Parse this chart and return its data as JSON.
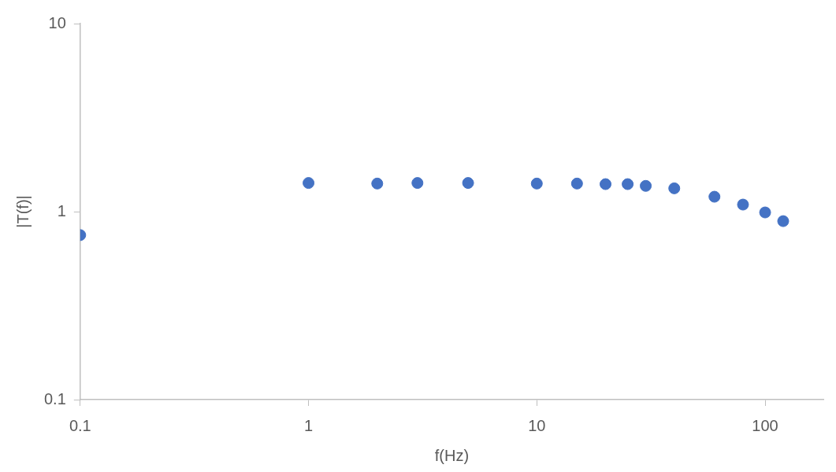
{
  "chart_data": {
    "type": "scatter",
    "xlabel": "f(Hz)",
    "ylabel": "|T(f)|",
    "log": "xy",
    "grid": false,
    "legend": false,
    "marker": "circle",
    "xlim": [
      0.1,
      180
    ],
    "xticks": [
      0.1,
      1,
      10,
      100
    ],
    "ylim": [
      0.1,
      10
    ],
    "yticks": [
      0.1,
      1,
      10
    ],
    "series": [
      {
        "color": "#4472c4",
        "x": [
          0.1,
          1,
          2,
          3,
          5,
          10,
          15,
          20,
          25,
          30,
          40,
          60,
          80,
          100,
          120
        ],
        "values": [
          0.75,
          1.42,
          1.41,
          1.42,
          1.42,
          1.41,
          1.41,
          1.4,
          1.4,
          1.37,
          1.33,
          1.2,
          1.09,
          0.99,
          0.89
        ]
      }
    ]
  }
}
